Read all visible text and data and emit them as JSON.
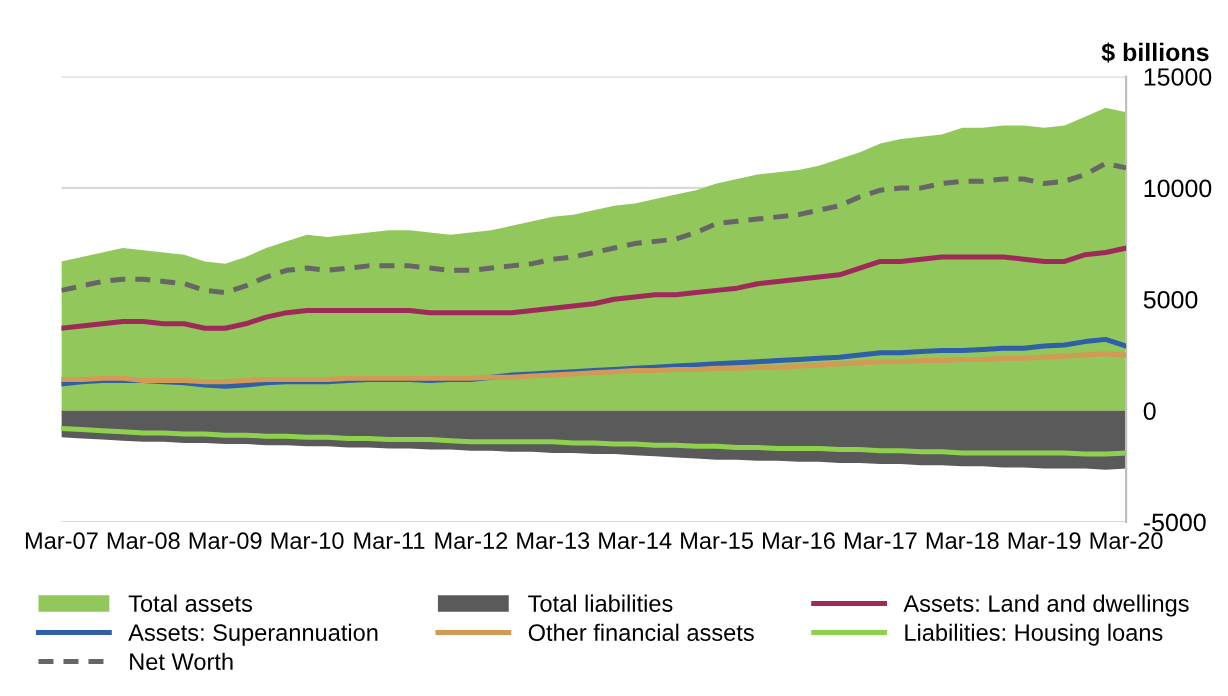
{
  "chart_data": {
    "type": "area",
    "ylabel": "$ billions",
    "categories": [
      "Mar-07",
      null,
      null,
      null,
      "Mar-08",
      null,
      null,
      null,
      "Mar-09",
      null,
      null,
      null,
      "Mar-10",
      null,
      null,
      null,
      "Mar-11",
      null,
      null,
      null,
      "Mar-12",
      null,
      null,
      null,
      "Mar-13",
      null,
      null,
      null,
      "Mar-14",
      null,
      null,
      null,
      "Mar-15",
      null,
      null,
      null,
      "Mar-16",
      null,
      null,
      null,
      "Mar-17",
      null,
      null,
      null,
      "Mar-18",
      null,
      null,
      null,
      "Mar-19",
      null,
      null,
      null,
      "Mar-20"
    ],
    "ylim": [
      -5000,
      15000
    ],
    "yticks": [
      -5000,
      0,
      5000,
      10000,
      15000
    ],
    "grid": "y",
    "legend": "bottom",
    "series": [
      {
        "name": "Total assets",
        "color": "#92c75b",
        "values": [
          6700,
          6900,
          7100,
          7300,
          7200,
          7100,
          7000,
          6700,
          6600,
          6900,
          7300,
          7600,
          7900,
          7800,
          7900,
          8000,
          8100,
          8100,
          8000,
          7900,
          8000,
          8100,
          8300,
          8500,
          8700,
          8800,
          9000,
          9200,
          9300,
          9500,
          9700,
          9900,
          10200,
          10400,
          10600,
          10700,
          10800,
          11000,
          11300,
          11600,
          12000,
          12200,
          12300,
          12400,
          12700,
          12700,
          12800,
          12800,
          12700,
          12800,
          13200,
          13600,
          13400
        ]
      },
      {
        "name": "Total liabilities",
        "color": "#5a5a5a",
        "values": [
          -1200,
          -1250,
          -1300,
          -1350,
          -1400,
          -1400,
          -1450,
          -1450,
          -1500,
          -1500,
          -1550,
          -1550,
          -1600,
          -1600,
          -1650,
          -1650,
          -1700,
          -1700,
          -1750,
          -1750,
          -1800,
          -1800,
          -1850,
          -1850,
          -1900,
          -1900,
          -1950,
          -1950,
          -2000,
          -2050,
          -2100,
          -2150,
          -2200,
          -2200,
          -2250,
          -2250,
          -2300,
          -2300,
          -2350,
          -2350,
          -2400,
          -2400,
          -2450,
          -2450,
          -2500,
          -2500,
          -2550,
          -2550,
          -2600,
          -2600,
          -2600,
          -2650,
          -2600
        ]
      },
      {
        "name": "Assets: Land and dwellings",
        "type": "line",
        "color": "#9e2a5a",
        "values": [
          3700,
          3800,
          3900,
          4000,
          4000,
          3900,
          3900,
          3700,
          3700,
          3900,
          4200,
          4400,
          4500,
          4500,
          4500,
          4500,
          4500,
          4500,
          4400,
          4400,
          4400,
          4400,
          4400,
          4500,
          4600,
          4700,
          4800,
          5000,
          5100,
          5200,
          5200,
          5300,
          5400,
          5500,
          5700,
          5800,
          5900,
          6000,
          6100,
          6400,
          6700,
          6700,
          6800,
          6900,
          6900,
          6900,
          6900,
          6800,
          6700,
          6700,
          7000,
          7100,
          7300
        ]
      },
      {
        "name": "Assets: Superannuation",
        "type": "line",
        "color": "#2e5fa8",
        "values": [
          1200,
          1300,
          1350,
          1350,
          1350,
          1300,
          1250,
          1150,
          1100,
          1150,
          1250,
          1300,
          1300,
          1300,
          1350,
          1400,
          1400,
          1400,
          1350,
          1400,
          1400,
          1500,
          1600,
          1650,
          1700,
          1750,
          1800,
          1850,
          1900,
          1950,
          2000,
          2050,
          2100,
          2150,
          2200,
          2250,
          2300,
          2350,
          2400,
          2500,
          2600,
          2600,
          2650,
          2700,
          2700,
          2750,
          2800,
          2800,
          2900,
          2950,
          3100,
          3200,
          2900
        ]
      },
      {
        "name": "Other financial assets",
        "type": "line",
        "color": "#d29a55",
        "values": [
          1400,
          1400,
          1450,
          1450,
          1350,
          1350,
          1350,
          1300,
          1300,
          1350,
          1400,
          1400,
          1400,
          1400,
          1450,
          1450,
          1450,
          1450,
          1450,
          1450,
          1450,
          1500,
          1500,
          1550,
          1600,
          1650,
          1700,
          1750,
          1800,
          1800,
          1850,
          1850,
          1900,
          1900,
          1950,
          1950,
          2000,
          2050,
          2100,
          2150,
          2200,
          2200,
          2250,
          2250,
          2300,
          2300,
          2350,
          2350,
          2400,
          2450,
          2500,
          2550,
          2500
        ]
      },
      {
        "name": "Liabilities: Housing loans",
        "type": "line",
        "color": "#8fd14f",
        "values": [
          -800,
          -850,
          -900,
          -950,
          -1000,
          -1000,
          -1050,
          -1050,
          -1100,
          -1100,
          -1150,
          -1150,
          -1200,
          -1200,
          -1250,
          -1250,
          -1300,
          -1300,
          -1300,
          -1350,
          -1400,
          -1400,
          -1400,
          -1400,
          -1400,
          -1450,
          -1450,
          -1500,
          -1500,
          -1550,
          -1550,
          -1600,
          -1600,
          -1650,
          -1650,
          -1700,
          -1700,
          -1700,
          -1750,
          -1750,
          -1800,
          -1800,
          -1850,
          -1850,
          -1900,
          -1900,
          -1900,
          -1900,
          -1900,
          -1900,
          -1950,
          -1950,
          -1900
        ]
      },
      {
        "name": "Net Worth",
        "type": "line",
        "line_style": "dashed",
        "color": "#666666",
        "values": [
          5400,
          5600,
          5800,
          5900,
          5900,
          5800,
          5700,
          5400,
          5300,
          5600,
          6000,
          6300,
          6400,
          6300,
          6400,
          6500,
          6500,
          6500,
          6400,
          6300,
          6300,
          6400,
          6500,
          6600,
          6800,
          6900,
          7100,
          7300,
          7500,
          7600,
          7700,
          8000,
          8400,
          8500,
          8600,
          8700,
          8800,
          9000,
          9200,
          9600,
          9900,
          10000,
          10000,
          10200,
          10300,
          10300,
          10400,
          10400,
          10200,
          10300,
          10600,
          11100,
          10900
        ]
      }
    ]
  }
}
